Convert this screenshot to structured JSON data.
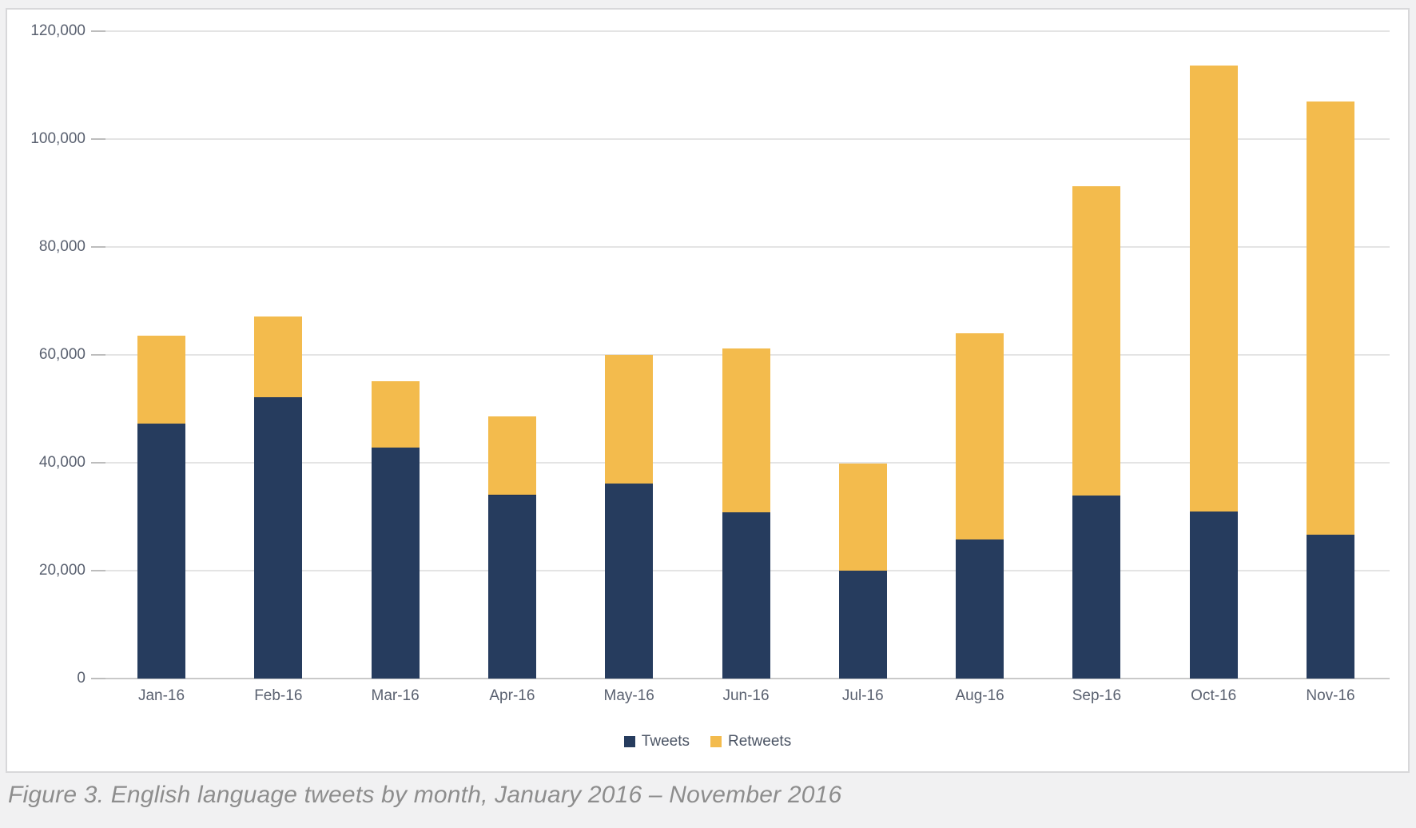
{
  "caption": "Figure 3. English language tweets by month, January 2016 – November 2016",
  "legend": {
    "tweets_label": "Tweets",
    "retweets_label": "Retweets"
  },
  "colors": {
    "tweets": "#263C5E",
    "retweets": "#F3BB4D",
    "gridline": "#E4E4E4",
    "axis_line": "#C9C9C9",
    "tick": "#BDBDBD",
    "axis_text": "#5A6170",
    "legend_text": "#4C5565",
    "caption_text": "#8D8D8D",
    "card_border": "#D8D8DA",
    "card_bg": "#FFFFFF",
    "page_bg": "#F1F1F2"
  },
  "chart_data": {
    "type": "bar",
    "stacked": true,
    "title": "",
    "xlabel": "",
    "ylabel": "",
    "categories": [
      "Jan-16",
      "Feb-16",
      "Mar-16",
      "Apr-16",
      "May-16",
      "Jun-16",
      "Jul-16",
      "Aug-16",
      "Sep-16",
      "Oct-16",
      "Nov-16"
    ],
    "series": [
      {
        "name": "Tweets",
        "color_key": "tweets",
        "values": [
          47300,
          52200,
          42800,
          34000,
          36200,
          30800,
          20000,
          25800,
          33900,
          30900,
          26600
        ]
      },
      {
        "name": "Retweets",
        "color_key": "retweets",
        "values": [
          16300,
          14900,
          12300,
          14600,
          23800,
          30400,
          19800,
          38200,
          57400,
          82700,
          80300
        ]
      }
    ],
    "stack_totals": [
      63600,
      67100,
      55100,
      48600,
      60000,
      61200,
      39800,
      64000,
      91300,
      113600,
      106900
    ],
    "ylim": [
      0,
      120000
    ],
    "y_ticks": [
      0,
      20000,
      40000,
      60000,
      80000,
      100000,
      120000
    ],
    "y_tick_labels": [
      "0",
      "20,000",
      "40,000",
      "60,000",
      "80,000",
      "100,000",
      "120,000"
    ],
    "grid": "horizontal",
    "legend_position": "bottom-center"
  }
}
